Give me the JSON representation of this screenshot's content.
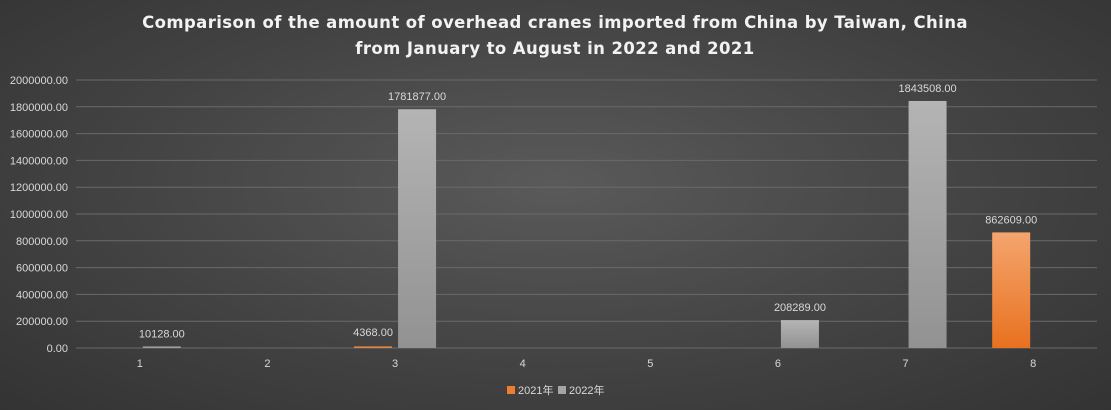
{
  "title": {
    "line1": "Comparison of the amount of overhead cranes imported from China by Taiwan, China",
    "line2": "from January to August in 2022 and 2021"
  },
  "colors": {
    "series_2021": "#ed7d31",
    "series_2022": "#a5a5a5"
  },
  "chart_data": {
    "type": "bar",
    "title": "Comparison of the amount of overhead cranes imported from China by Taiwan, China from January to August in 2022 and 2021",
    "categories": [
      "1",
      "2",
      "3",
      "4",
      "5",
      "6",
      "7",
      "8"
    ],
    "series": [
      {
        "name": "2021年",
        "values": [
          0,
          0,
          4368,
          0,
          0,
          0,
          0,
          862609
        ],
        "labels": [
          "",
          "",
          "",
          "",
          "",
          "",
          "",
          "862609.00"
        ]
      },
      {
        "name": "2022年",
        "values": [
          10128,
          0,
          1781877,
          0,
          0,
          208289,
          1843508,
          0
        ],
        "labels": [
          "10128.00",
          "",
          "1781877.00",
          "",
          "",
          "208289.00",
          "1843508.00",
          ""
        ]
      }
    ],
    "extra_labels": [
      {
        "category": "3",
        "text": "4368.00"
      }
    ],
    "yticks": [
      "0.00",
      "200000.00",
      "400000.00",
      "600000.00",
      "800000.00",
      "1000000.00",
      "1200000.00",
      "1400000.00",
      "1600000.00",
      "1800000.00",
      "2000000.00"
    ],
    "ylim": [
      0,
      2000000
    ],
    "grid": true,
    "legend_position": "bottom",
    "xlabel": "",
    "ylabel": ""
  }
}
